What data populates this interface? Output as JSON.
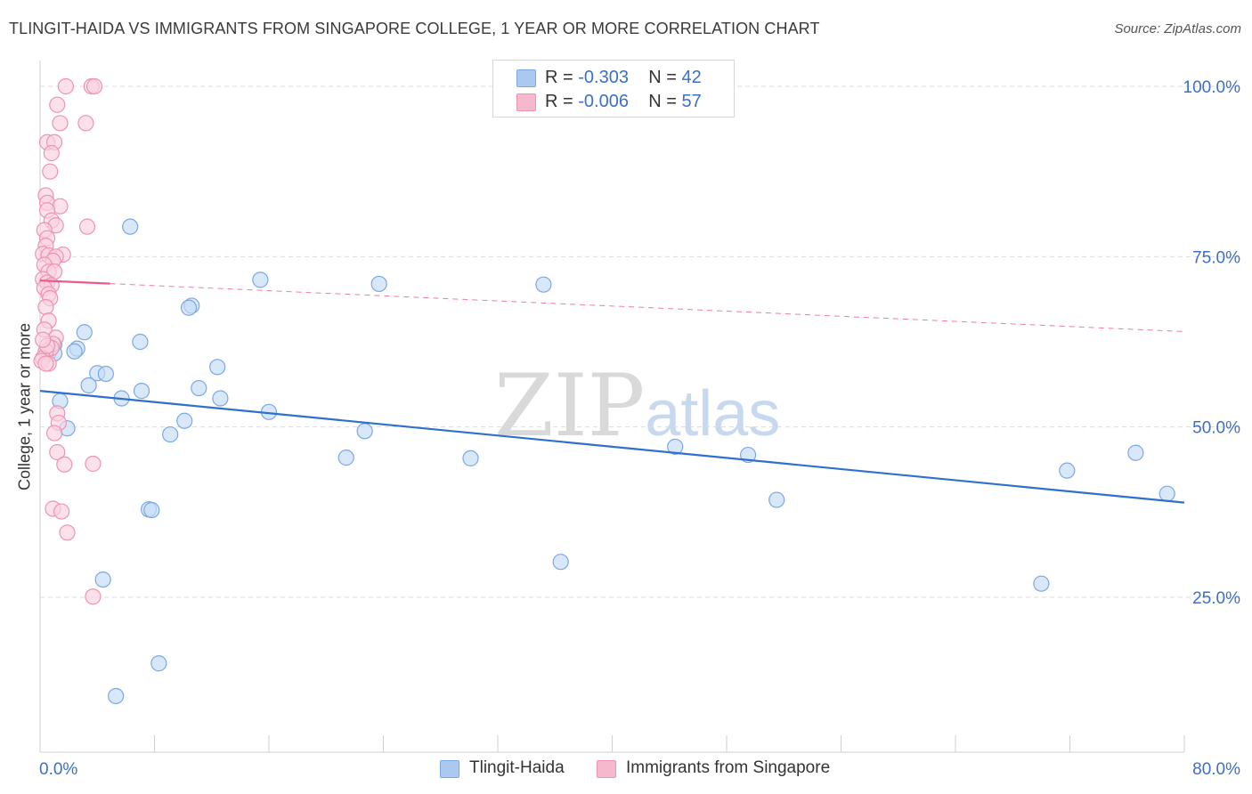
{
  "title": "TLINGIT-HAIDA VS IMMIGRANTS FROM SINGAPORE COLLEGE, 1 YEAR OR MORE CORRELATION CHART",
  "source": "Source: ZipAtlas.com",
  "watermark": {
    "zip": "ZIP",
    "atlas": "atlas"
  },
  "legend": {
    "r_label": "R =",
    "n_label": "N =",
    "rows": [
      {
        "r": "-0.303",
        "n": "42",
        "color": "#aac8f0"
      },
      {
        "r": "-0.006",
        "n": "57",
        "color": "#f6b8cc"
      }
    ]
  },
  "bottom_legend": [
    {
      "label": "Tlingit-Haida",
      "color": "#aac8f0"
    },
    {
      "label": "Immigrants from Singapore",
      "color": "#f6b8cc"
    }
  ],
  "chart_data": {
    "type": "scatter",
    "xlabel": "",
    "ylabel": "College, 1 year or more",
    "xlim": [
      0,
      80
    ],
    "ylim": [
      0,
      102
    ],
    "x_tick_labels": [
      "0.0%",
      "80.0%"
    ],
    "y_ticks": [
      {
        "value": 100,
        "label": "100.0%"
      },
      {
        "value": 75,
        "label": "75.0%"
      },
      {
        "value": 50,
        "label": "50.0%"
      },
      {
        "value": 25,
        "label": "25.0%"
      }
    ],
    "grid": true,
    "series": [
      {
        "name": "Tlingit-Haida",
        "color": "#7aa8e6",
        "fill": "#c5dbf6",
        "trend": {
          "x0": 0,
          "y0": 55.3,
          "x1": 80,
          "y1": 38.9,
          "color": "#2f6fd0",
          "dashed_from": null
        },
        "points": [
          [
            6.3,
            79.4
          ],
          [
            15.4,
            71.6
          ],
          [
            23.7,
            71.0
          ],
          [
            35.2,
            70.9
          ],
          [
            10.6,
            67.8
          ],
          [
            10.4,
            67.5
          ],
          [
            3.1,
            63.9
          ],
          [
            7.0,
            62.5
          ],
          [
            1.0,
            62.1
          ],
          [
            2.6,
            61.5
          ],
          [
            2.4,
            61.1
          ],
          [
            0.6,
            60.9
          ],
          [
            12.4,
            58.8
          ],
          [
            4.0,
            57.9
          ],
          [
            4.6,
            57.8
          ],
          [
            3.4,
            56.1
          ],
          [
            11.1,
            55.7
          ],
          [
            7.1,
            55.3
          ],
          [
            5.7,
            54.2
          ],
          [
            12.6,
            54.2
          ],
          [
            1.4,
            53.8
          ],
          [
            16.0,
            52.2
          ],
          [
            10.1,
            50.9
          ],
          [
            22.7,
            49.4
          ],
          [
            1.9,
            49.8
          ],
          [
            9.1,
            48.9
          ],
          [
            44.4,
            47.1
          ],
          [
            49.5,
            45.9
          ],
          [
            71.8,
            43.6
          ],
          [
            76.6,
            46.2
          ],
          [
            21.4,
            45.5
          ],
          [
            30.1,
            45.4
          ],
          [
            78.8,
            40.2
          ],
          [
            51.5,
            39.3
          ],
          [
            7.6,
            37.9
          ],
          [
            7.8,
            37.8
          ],
          [
            36.4,
            30.2
          ],
          [
            70.0,
            27.0
          ],
          [
            4.4,
            27.6
          ],
          [
            8.3,
            15.3
          ],
          [
            5.3,
            10.5
          ],
          [
            1.0,
            60.8
          ]
        ]
      },
      {
        "name": "Immigrants from Singapore",
        "color": "#ee93b0",
        "fill": "#f9d3df",
        "trend": {
          "x0": 0,
          "y0": 71.5,
          "x1": 80,
          "y1": 64.0,
          "color": "#e85c8b",
          "dashed_from": 4.9
        },
        "points": [
          [
            1.8,
            100.0
          ],
          [
            3.6,
            100.0
          ],
          [
            3.8,
            100.0
          ],
          [
            1.2,
            97.3
          ],
          [
            1.4,
            94.6
          ],
          [
            3.2,
            94.6
          ],
          [
            0.5,
            91.8
          ],
          [
            1.0,
            91.8
          ],
          [
            0.8,
            90.2
          ],
          [
            0.7,
            87.5
          ],
          [
            0.4,
            84.0
          ],
          [
            0.5,
            82.9
          ],
          [
            1.4,
            82.4
          ],
          [
            0.5,
            81.8
          ],
          [
            0.8,
            80.3
          ],
          [
            3.3,
            79.4
          ],
          [
            1.1,
            79.6
          ],
          [
            0.3,
            78.9
          ],
          [
            0.5,
            77.7
          ],
          [
            0.4,
            76.6
          ],
          [
            0.2,
            75.4
          ],
          [
            1.6,
            75.3
          ],
          [
            0.6,
            75.2
          ],
          [
            1.1,
            75.0
          ],
          [
            0.9,
            74.4
          ],
          [
            0.3,
            73.8
          ],
          [
            0.6,
            72.8
          ],
          [
            1.0,
            72.8
          ],
          [
            0.2,
            71.7
          ],
          [
            0.5,
            71.2
          ],
          [
            0.8,
            70.8
          ],
          [
            0.3,
            70.4
          ],
          [
            0.6,
            69.5
          ],
          [
            0.7,
            68.9
          ],
          [
            0.4,
            67.6
          ],
          [
            0.6,
            65.6
          ],
          [
            0.3,
            64.3
          ],
          [
            1.1,
            63.1
          ],
          [
            0.9,
            62.2
          ],
          [
            0.8,
            61.6
          ],
          [
            0.4,
            61.1
          ],
          [
            0.2,
            60.1
          ],
          [
            0.1,
            59.7
          ],
          [
            0.6,
            59.3
          ],
          [
            0.4,
            59.3
          ],
          [
            1.2,
            52.0
          ],
          [
            1.3,
            50.6
          ],
          [
            1.0,
            49.1
          ],
          [
            1.2,
            46.3
          ],
          [
            1.7,
            44.5
          ],
          [
            3.7,
            44.6
          ],
          [
            0.9,
            38.0
          ],
          [
            1.5,
            37.6
          ],
          [
            1.9,
            34.5
          ],
          [
            3.7,
            25.1
          ],
          [
            0.5,
            61.9
          ],
          [
            0.2,
            62.8
          ]
        ]
      }
    ]
  }
}
